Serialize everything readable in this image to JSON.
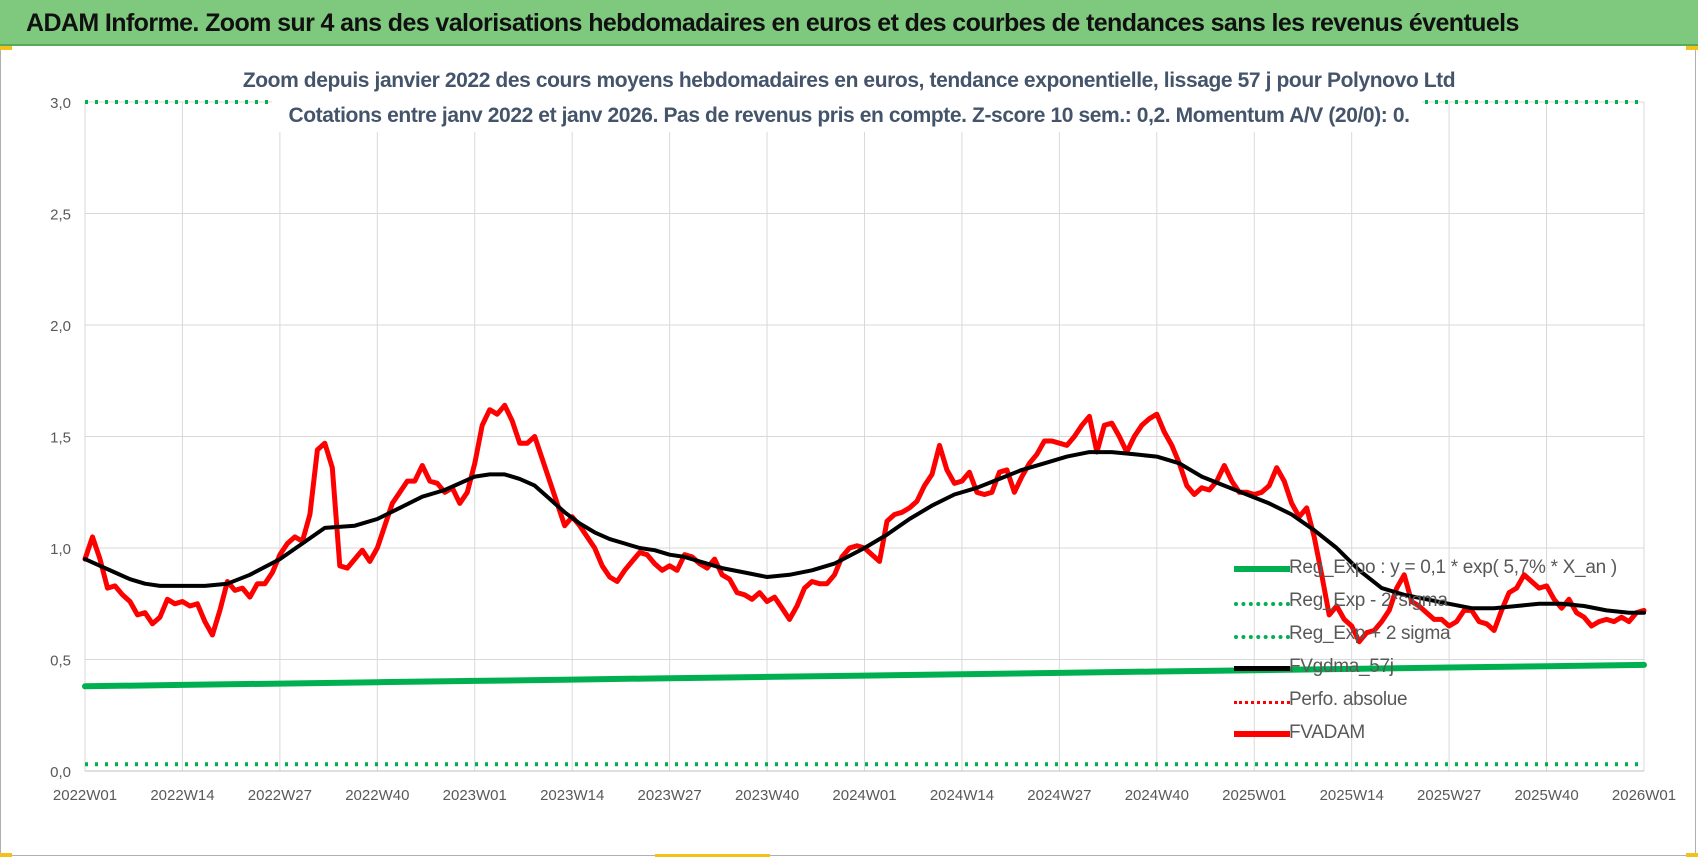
{
  "header": {
    "title": "ADAM Informe. Zoom sur 4 ans des valorisations hebdomadaires en euros et des courbes de tendances sans les revenus éventuels"
  },
  "chart_data": {
    "type": "line",
    "title": "Zoom depuis janvier 2022 des cours moyens hebdomadaires en euros, tendance exponentielle, lissage 57 j pour Polynovo Ltd",
    "subtitle": "Cotations entre janv 2022 et janv 2026. Pas de revenus pris en compte. Z-score 10 sem.: 0,2. Momentum A/V (20/0): 0.",
    "xlabel": "",
    "ylabel": "",
    "ylim": [
      0,
      3
    ],
    "yticks": [
      "0,0",
      "0,5",
      "1,0",
      "1,5",
      "2,0",
      "2,5",
      "3,0"
    ],
    "yticks_values": [
      0,
      0.5,
      1.0,
      1.5,
      2.0,
      2.5,
      3.0
    ],
    "categories": [
      "2022W01",
      "2022W14",
      "2022W27",
      "2022W40",
      "2023W01",
      "2023W14",
      "2023W27",
      "2023W40",
      "2024W01",
      "2024W14",
      "2024W27",
      "2024W40",
      "2025W01",
      "2025W14",
      "2025W27",
      "2025W40",
      "2026W01"
    ],
    "grid": true,
    "legend_position": "bottom-right",
    "series": [
      {
        "name": "Reg_Expo : y = 0,1 * exp( 5,7% * X_an )",
        "color": "#00b050",
        "style": "solid",
        "x": [
          0,
          13,
          26,
          39,
          52,
          65,
          78,
          91,
          104,
          117,
          130,
          143,
          156,
          169,
          182,
          195,
          208
        ],
        "values": [
          0.38,
          0.386,
          0.392,
          0.398,
          0.404,
          0.41,
          0.416,
          0.422,
          0.428,
          0.434,
          0.44,
          0.446,
          0.452,
          0.458,
          0.464,
          0.47,
          0.476
        ]
      },
      {
        "name": "Reg_Exp - 2*sigma",
        "color": "#00b050",
        "style": "dotted",
        "x": [
          0,
          208
        ],
        "values": [
          0.03,
          0.03
        ]
      },
      {
        "name": "Reg_Exp + 2 sigma",
        "color": "#00b050",
        "style": "dotted",
        "x": [
          0,
          208
        ],
        "values": [
          3.0,
          3.0
        ]
      },
      {
        "name": "FVgdma_57j",
        "color": "#000000",
        "style": "solid",
        "x": [
          0,
          2,
          4,
          6,
          8,
          10,
          13,
          16,
          19,
          22,
          26,
          29,
          32,
          36,
          39,
          42,
          45,
          48,
          52,
          54,
          56,
          58,
          60,
          62,
          64,
          66,
          68,
          70,
          72,
          74,
          76,
          78,
          80,
          82,
          85,
          88,
          91,
          94,
          97,
          100,
          104,
          107,
          110,
          113,
          116,
          119,
          122,
          125,
          128,
          131,
          134,
          137,
          140,
          143,
          146,
          149,
          152,
          155,
          158,
          161,
          164,
          167,
          170,
          173,
          176,
          179,
          182,
          185,
          188,
          191,
          194,
          197,
          200,
          203,
          206,
          208
        ],
        "values": [
          0.95,
          0.92,
          0.89,
          0.86,
          0.84,
          0.83,
          0.83,
          0.83,
          0.84,
          0.88,
          0.95,
          1.02,
          1.09,
          1.1,
          1.13,
          1.18,
          1.23,
          1.26,
          1.32,
          1.33,
          1.33,
          1.31,
          1.28,
          1.22,
          1.16,
          1.11,
          1.07,
          1.04,
          1.02,
          1.0,
          0.99,
          0.97,
          0.96,
          0.94,
          0.91,
          0.89,
          0.87,
          0.88,
          0.9,
          0.93,
          1.0,
          1.06,
          1.13,
          1.19,
          1.24,
          1.27,
          1.31,
          1.35,
          1.38,
          1.41,
          1.43,
          1.43,
          1.42,
          1.41,
          1.38,
          1.32,
          1.28,
          1.24,
          1.2,
          1.15,
          1.08,
          1.0,
          0.9,
          0.82,
          0.79,
          0.77,
          0.75,
          0.73,
          0.73,
          0.74,
          0.75,
          0.75,
          0.74,
          0.72,
          0.71,
          0.71
        ]
      },
      {
        "name": "Perfo. absolue",
        "color": "#ff0000",
        "style": "dotted",
        "x": [],
        "values": []
      },
      {
        "name": "FVADAM",
        "color": "#ff0000",
        "style": "solid",
        "x": [
          0,
          1,
          2,
          3,
          4,
          5,
          6,
          7,
          8,
          9,
          10,
          11,
          12,
          13,
          14,
          15,
          16,
          17,
          18,
          19,
          20,
          21,
          22,
          23,
          24,
          25,
          26,
          27,
          28,
          29,
          30,
          31,
          32,
          33,
          34,
          35,
          36,
          37,
          38,
          39,
          40,
          41,
          42,
          43,
          44,
          45,
          46,
          47,
          48,
          49,
          50,
          51,
          52,
          53,
          54,
          55,
          56,
          57,
          58,
          59,
          60,
          61,
          62,
          63,
          64,
          65,
          66,
          67,
          68,
          69,
          70,
          71,
          72,
          73,
          74,
          75,
          76,
          77,
          78,
          79,
          80,
          81,
          82,
          83,
          84,
          85,
          86,
          87,
          88,
          89,
          90,
          91,
          92,
          93,
          94,
          95,
          96,
          97,
          98,
          99,
          100,
          101,
          102,
          103,
          104,
          105,
          106,
          107,
          108,
          109,
          110,
          111,
          112,
          113,
          114,
          115,
          116,
          117,
          118,
          119,
          120,
          121,
          122,
          123,
          124,
          125,
          126,
          127,
          128,
          129,
          130,
          131,
          132,
          133,
          134,
          135,
          136,
          137,
          138,
          139,
          140,
          141,
          142,
          143,
          144,
          145,
          146,
          147,
          148,
          149,
          150,
          151,
          152,
          153,
          154,
          155,
          156,
          157,
          158,
          159,
          160,
          161,
          162,
          163,
          164,
          165,
          166,
          167,
          168,
          169,
          170,
          171,
          172,
          173,
          174,
          175,
          176,
          177,
          178,
          179,
          180,
          181,
          182,
          183,
          184,
          185,
          186,
          187,
          188,
          189,
          190,
          191,
          192,
          193,
          194,
          195,
          196,
          197,
          198,
          199,
          200,
          201,
          202,
          203,
          204,
          205,
          206,
          207,
          208
        ],
        "values": [
          0.95,
          1.05,
          0.95,
          0.82,
          0.83,
          0.79,
          0.76,
          0.7,
          0.71,
          0.66,
          0.69,
          0.77,
          0.75,
          0.76,
          0.74,
          0.75,
          0.67,
          0.61,
          0.72,
          0.85,
          0.81,
          0.82,
          0.78,
          0.84,
          0.84,
          0.89,
          0.97,
          1.02,
          1.05,
          1.03,
          1.15,
          1.44,
          1.47,
          1.36,
          0.92,
          0.91,
          0.95,
          0.99,
          0.94,
          1.0,
          1.1,
          1.2,
          1.25,
          1.3,
          1.3,
          1.37,
          1.3,
          1.29,
          1.25,
          1.27,
          1.2,
          1.25,
          1.38,
          1.55,
          1.62,
          1.6,
          1.64,
          1.57,
          1.47,
          1.47,
          1.5,
          1.4,
          1.3,
          1.2,
          1.1,
          1.14,
          1.1,
          1.05,
          1.0,
          0.92,
          0.87,
          0.85,
          0.9,
          0.94,
          0.98,
          0.97,
          0.93,
          0.9,
          0.92,
          0.9,
          0.97,
          0.96,
          0.93,
          0.91,
          0.95,
          0.88,
          0.86,
          0.8,
          0.79,
          0.77,
          0.8,
          0.76,
          0.78,
          0.73,
          0.68,
          0.74,
          0.82,
          0.85,
          0.84,
          0.84,
          0.88,
          0.96,
          1.0,
          1.01,
          1.0,
          0.97,
          0.94,
          1.12,
          1.15,
          1.16,
          1.18,
          1.21,
          1.28,
          1.33,
          1.46,
          1.35,
          1.29,
          1.3,
          1.34,
          1.25,
          1.24,
          1.25,
          1.34,
          1.35,
          1.25,
          1.32,
          1.38,
          1.42,
          1.48,
          1.48,
          1.47,
          1.46,
          1.5,
          1.55,
          1.59,
          1.43,
          1.55,
          1.56,
          1.5,
          1.43,
          1.5,
          1.55,
          1.58,
          1.6,
          1.52,
          1.46,
          1.38,
          1.28,
          1.24,
          1.27,
          1.26,
          1.3,
          1.37,
          1.3,
          1.25,
          1.25,
          1.24,
          1.25,
          1.28,
          1.36,
          1.3,
          1.2,
          1.14,
          1.18,
          1.05,
          0.88,
          0.7,
          0.74,
          0.68,
          0.65,
          0.58,
          0.62,
          0.63,
          0.67,
          0.72,
          0.82,
          0.88,
          0.76,
          0.74,
          0.71,
          0.68,
          0.68,
          0.65,
          0.67,
          0.72,
          0.72,
          0.67,
          0.66,
          0.63,
          0.72,
          0.8,
          0.82,
          0.88,
          0.85,
          0.82,
          0.83,
          0.77,
          0.73,
          0.77,
          0.71,
          0.69,
          0.65,
          0.67,
          0.68,
          0.67,
          0.69,
          0.67,
          0.71,
          0.72
        ]
      }
    ]
  }
}
